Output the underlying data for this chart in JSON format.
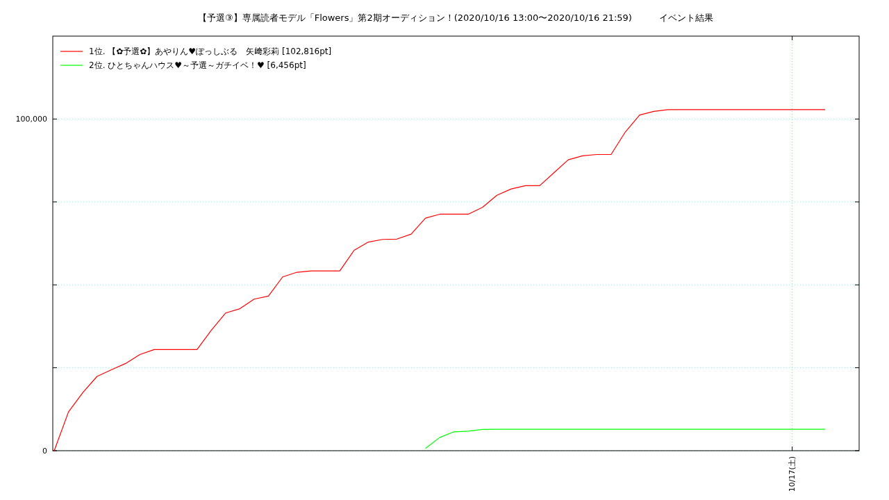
{
  "chart_data": {
    "type": "line",
    "title": "【予選③】専属読者モデル「Flowers」第2期オーディション！(2020/10/16 13:00〜2020/10/16 21:59)　　　イベント結果",
    "categories": [
      null,
      null,
      null,
      null,
      null,
      null,
      null,
      null,
      null,
      null,
      null,
      null,
      null,
      null,
      null,
      null,
      null,
      null,
      null,
      null,
      null,
      null,
      null,
      null,
      null,
      null,
      null,
      null,
      null,
      null,
      null,
      null,
      null,
      null,
      null,
      null,
      null,
      null,
      null,
      null,
      null,
      null,
      null,
      null,
      null,
      null,
      null,
      null,
      null,
      null,
      null,
      null,
      null,
      null,
      null
    ],
    "annotations": [
      "10/17(土)"
    ],
    "ylim": [
      0,
      125000
    ],
    "yticks": [
      {
        "value": 0,
        "label": "0"
      },
      {
        "value": 25000,
        "label": null
      },
      {
        "value": 50000,
        "label": null
      },
      {
        "value": 75000,
        "label": null
      },
      {
        "value": 100000,
        "label": "100,000"
      }
    ],
    "grid": true,
    "legend": "top left",
    "series": [
      {
        "name": "1位. 【✿予選✿】あやりん♥ぽっしぶる　矢﨑彩莉 [102,816pt]",
        "color": "#ff0000",
        "values": [
          0,
          11700,
          17500,
          22400,
          24400,
          26300,
          29000,
          30500,
          30500,
          30500,
          30500,
          36300,
          41500,
          42800,
          45700,
          46600,
          52400,
          53800,
          54200,
          54200,
          54200,
          60400,
          62900,
          63700,
          63800,
          65300,
          70100,
          71300,
          71300,
          71300,
          73400,
          77000,
          78900,
          79900,
          79900,
          83800,
          87700,
          88900,
          89300,
          89300,
          96100,
          101200,
          102300,
          102816,
          102816,
          102816,
          102816,
          102816,
          102816,
          102816,
          102816,
          102816,
          102816,
          102816,
          102816
        ]
      },
      {
        "name": "2位. ひとちゃんハウス♥～予選～ガチイベ！♥ [6,456pt]",
        "color": "#00ff00",
        "values": [
          null,
          null,
          null,
          null,
          null,
          null,
          null,
          null,
          null,
          null,
          null,
          null,
          null,
          null,
          null,
          null,
          null,
          null,
          null,
          null,
          null,
          null,
          null,
          null,
          null,
          null,
          700,
          4000,
          5700,
          5900,
          6400,
          6456,
          6456,
          6456,
          6456,
          6456,
          6456,
          6456,
          6456,
          6456,
          6456,
          6456,
          6456,
          6456,
          6456,
          6456,
          6456,
          6456,
          6456,
          6456,
          6456,
          6456,
          6456,
          6456,
          6456
        ]
      }
    ]
  }
}
